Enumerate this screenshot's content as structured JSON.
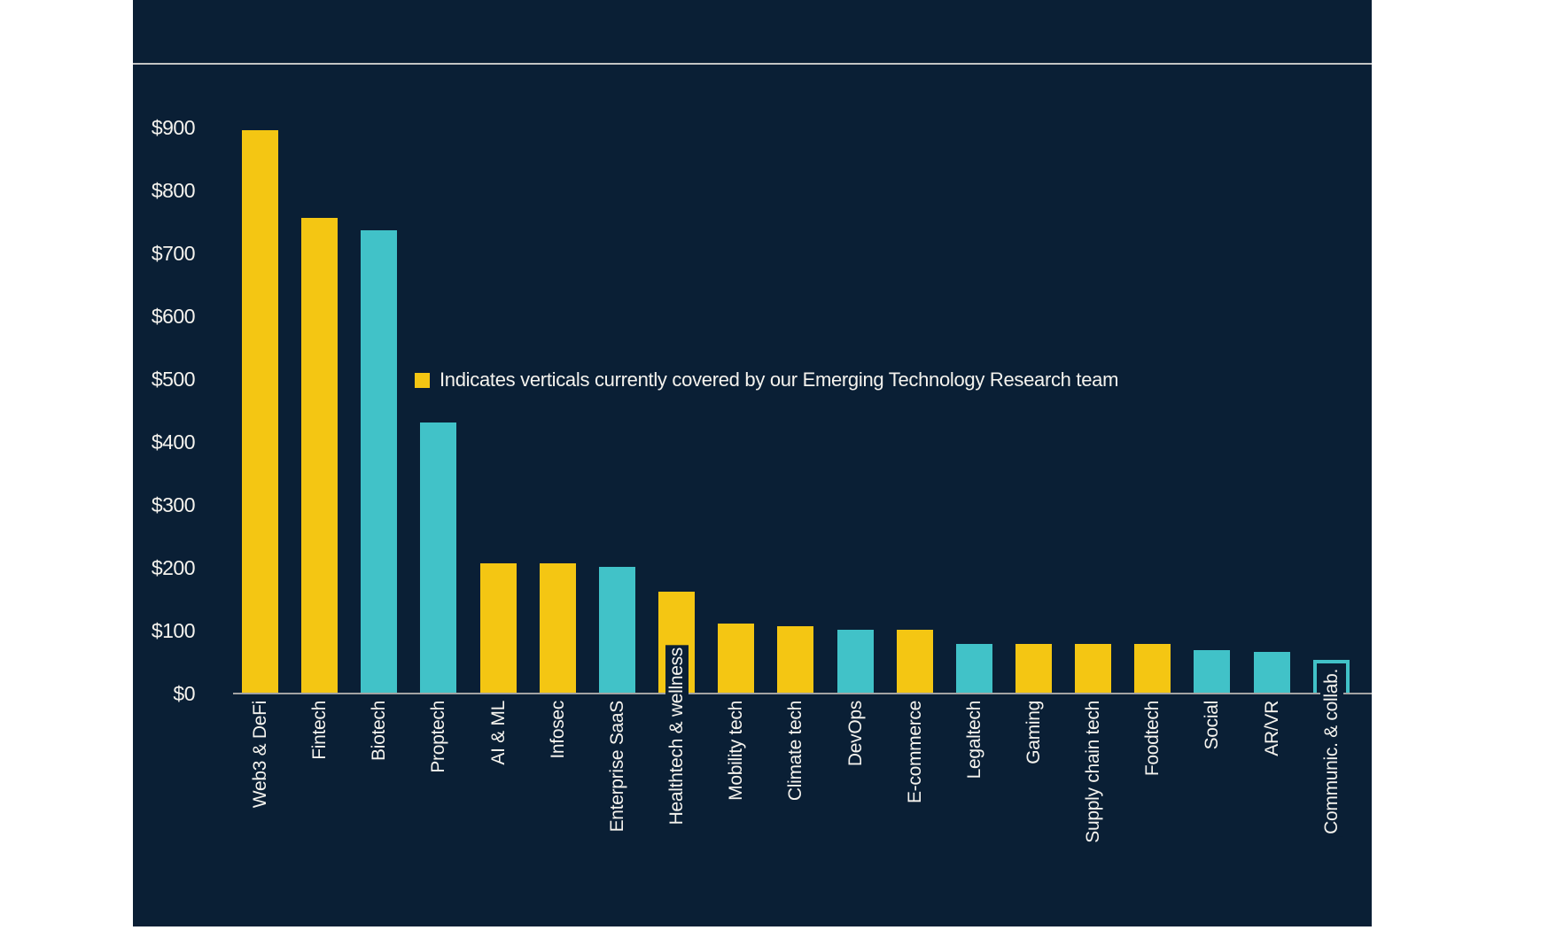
{
  "page": {
    "background": "#ffffff"
  },
  "panel": {
    "background": "#0a1f35",
    "divider_color": "#c4c4c4",
    "axis_line_color": "#a3a3a3",
    "text_color": "#f5f3ee"
  },
  "legend": {
    "label": "Indicates verticals currently covered by our Emerging Technology Research team",
    "swatch_color": "#f4c613"
  },
  "chart_data": {
    "type": "bar",
    "title": "",
    "xlabel": "",
    "ylabel": "",
    "ylim": [
      0,
      950
    ],
    "grid": false,
    "legend_position": "inside-left-middle",
    "legend_text": "Indicates verticals currently covered by our Emerging Technology Research team",
    "covered_color": "#f4c613",
    "not_covered_color": "#41c2c8",
    "ytick_values": [
      0,
      100,
      200,
      300,
      400,
      500,
      600,
      700,
      800,
      900
    ],
    "ytick_labels": [
      "$0",
      "$100",
      "$200",
      "$300",
      "$400",
      "$500",
      "$600",
      "$700",
      "$800",
      "$900"
    ],
    "categories": [
      "Web3 & DeFi",
      "Fintech",
      "Biotech",
      "Proptech",
      "AI & ML",
      "Infosec",
      "Enterprise SaaS",
      "Healthtech & wellness",
      "Mobility tech",
      "Climate tech",
      "DevOps",
      "E-commerce",
      "Legaltech",
      "Gaming",
      "Supply chain tech",
      "Foodtech",
      "Social",
      "AR/VR",
      "Communic. & collab."
    ],
    "values": [
      895,
      755,
      735,
      430,
      205,
      205,
      200,
      160,
      110,
      105,
      100,
      100,
      78,
      78,
      78,
      78,
      67,
      65,
      52
    ],
    "bars": [
      {
        "label": "Web3 & DeFi",
        "value": 895,
        "covered": true,
        "outline": false
      },
      {
        "label": "Fintech",
        "value": 755,
        "covered": true,
        "outline": false
      },
      {
        "label": "Biotech",
        "value": 735,
        "covered": false,
        "outline": false
      },
      {
        "label": "Proptech",
        "value": 430,
        "covered": false,
        "outline": false
      },
      {
        "label": "AI & ML",
        "value": 205,
        "covered": true,
        "outline": false
      },
      {
        "label": "Infosec",
        "value": 205,
        "covered": true,
        "outline": false
      },
      {
        "label": "Enterprise SaaS",
        "value": 200,
        "covered": false,
        "outline": false
      },
      {
        "label": "Healthtech & wellness",
        "value": 160,
        "covered": true,
        "outline": false
      },
      {
        "label": "Mobility tech",
        "value": 110,
        "covered": true,
        "outline": false
      },
      {
        "label": "Climate tech",
        "value": 105,
        "covered": true,
        "outline": false
      },
      {
        "label": "DevOps",
        "value": 100,
        "covered": false,
        "outline": false
      },
      {
        "label": "E-commerce",
        "value": 100,
        "covered": true,
        "outline": false
      },
      {
        "label": "Legaltech",
        "value": 78,
        "covered": false,
        "outline": false
      },
      {
        "label": "Gaming",
        "value": 78,
        "covered": true,
        "outline": false
      },
      {
        "label": "Supply chain tech",
        "value": 78,
        "covered": true,
        "outline": false
      },
      {
        "label": "Foodtech",
        "value": 78,
        "covered": true,
        "outline": false
      },
      {
        "label": "Social",
        "value": 67,
        "covered": false,
        "outline": false
      },
      {
        "label": "AR/VR",
        "value": 65,
        "covered": false,
        "outline": false
      },
      {
        "label": "Communic. & collab.",
        "value": 52,
        "covered": false,
        "outline": true
      }
    ]
  }
}
